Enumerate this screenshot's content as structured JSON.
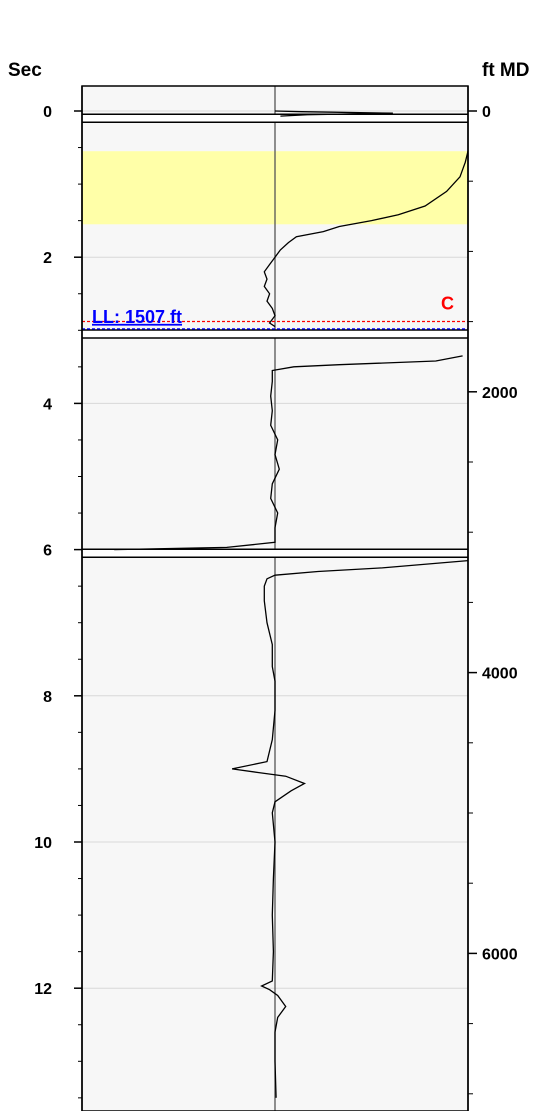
{
  "chart_data": {
    "type": "line",
    "left_axis": {
      "label": "Sec",
      "range": [
        -0.6,
        13.5
      ],
      "ticks": [
        0,
        2,
        4,
        6,
        8,
        10,
        12
      ],
      "tick_labels": [
        "0",
        "2",
        "4",
        "6",
        "8",
        "10",
        "12"
      ]
    },
    "right_axis": {
      "label": "ft MD",
      "ticks": [
        0,
        2000,
        4000,
        6000
      ],
      "tick_labels": [
        "0",
        "2000",
        "4000",
        "6000"
      ]
    },
    "grid": true,
    "highlight_band": {
      "from_sec": 0.55,
      "to_sec": 1.55,
      "color": "#ffffa8"
    },
    "gaps_sec": [
      0.1,
      3.05,
      6.05
    ],
    "level_lines": [
      {
        "sec": 2.88,
        "label": "C",
        "color": "#ff0000"
      },
      {
        "sec": 2.98,
        "label": "LL: 1507 ft",
        "color": "#0000ff"
      }
    ],
    "series": [
      {
        "segment": 1,
        "points": [
          [
            0.0,
            0.0
          ],
          [
            0.01,
            0.5
          ],
          [
            0.03,
            2.2
          ],
          [
            0.05,
            0.6
          ],
          [
            0.07,
            0.1
          ]
        ]
      },
      {
        "segment": 2,
        "points": [
          [
            0.55,
            3.6
          ],
          [
            0.7,
            3.55
          ],
          [
            0.9,
            3.45
          ],
          [
            1.1,
            3.2
          ],
          [
            1.3,
            2.8
          ],
          [
            1.42,
            2.3
          ],
          [
            1.5,
            1.8
          ],
          [
            1.58,
            1.2
          ],
          [
            1.65,
            0.9
          ],
          [
            1.72,
            0.4
          ],
          [
            1.8,
            0.25
          ],
          [
            1.9,
            0.1
          ],
          [
            2.0,
            0.0
          ],
          [
            2.1,
            -0.1
          ],
          [
            2.2,
            -0.2
          ],
          [
            2.3,
            -0.15
          ],
          [
            2.4,
            -0.2
          ],
          [
            2.5,
            -0.1
          ],
          [
            2.6,
            -0.15
          ],
          [
            2.7,
            -0.05
          ],
          [
            2.8,
            0.0
          ],
          [
            2.9,
            -0.1
          ],
          [
            2.95,
            0.0
          ]
        ]
      },
      {
        "segment": 3,
        "points": [
          [
            3.35,
            3.5
          ],
          [
            3.42,
            3.0
          ],
          [
            3.47,
            1.2
          ],
          [
            3.5,
            0.35
          ],
          [
            3.55,
            -0.05
          ],
          [
            3.7,
            -0.05
          ],
          [
            3.9,
            -0.08
          ],
          [
            4.1,
            -0.05
          ],
          [
            4.3,
            -0.08
          ],
          [
            4.5,
            0.05
          ],
          [
            4.7,
            0.0
          ],
          [
            4.9,
            0.08
          ],
          [
            5.1,
            -0.05
          ],
          [
            5.3,
            -0.08
          ],
          [
            5.5,
            0.05
          ],
          [
            5.7,
            0.0
          ],
          [
            5.9,
            0.0
          ],
          [
            5.97,
            -0.9
          ],
          [
            6.0,
            -3.0
          ]
        ]
      },
      {
        "segment": 4,
        "points": [
          [
            6.15,
            3.6
          ],
          [
            6.25,
            2.0
          ],
          [
            6.3,
            0.8
          ],
          [
            6.35,
            0.0
          ],
          [
            6.4,
            -0.15
          ],
          [
            6.5,
            -0.2
          ],
          [
            6.7,
            -0.2
          ],
          [
            7.0,
            -0.15
          ],
          [
            7.3,
            -0.05
          ],
          [
            7.6,
            -0.05
          ],
          [
            7.8,
            0.0
          ],
          [
            8.2,
            0.0
          ],
          [
            8.6,
            -0.05
          ],
          [
            8.9,
            -0.15
          ],
          [
            9.0,
            -0.8
          ],
          [
            9.05,
            -0.3
          ],
          [
            9.1,
            0.2
          ],
          [
            9.2,
            0.55
          ],
          [
            9.3,
            0.3
          ],
          [
            9.45,
            0.0
          ],
          [
            9.6,
            -0.05
          ],
          [
            10.0,
            0.0
          ],
          [
            10.5,
            -0.03
          ],
          [
            11.0,
            -0.05
          ],
          [
            11.5,
            -0.03
          ],
          [
            11.9,
            -0.05
          ],
          [
            11.97,
            -0.25
          ],
          [
            12.02,
            -0.1
          ],
          [
            12.1,
            0.05
          ],
          [
            12.25,
            0.2
          ],
          [
            12.4,
            0.05
          ],
          [
            12.6,
            0.0
          ],
          [
            13.0,
            0.0
          ],
          [
            13.5,
            0.02
          ]
        ]
      }
    ]
  }
}
